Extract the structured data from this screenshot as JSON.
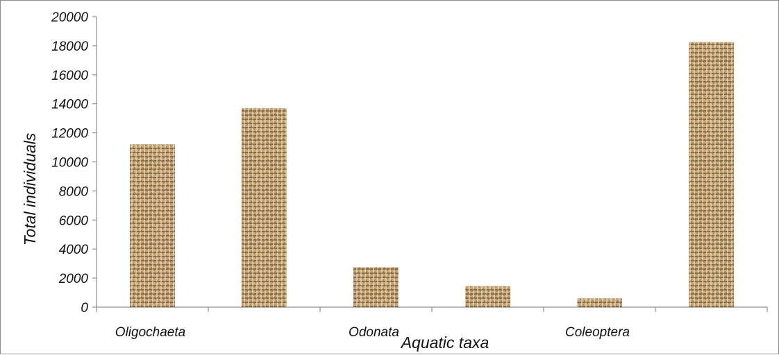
{
  "chart_data": {
    "type": "bar",
    "title": "",
    "xlabel": "Aquatic taxa",
    "ylabel": "Total individuals",
    "ylim": [
      0,
      20000
    ],
    "yticks": [
      "0",
      "2000",
      "4000",
      "6000",
      "8000",
      "10000",
      "12000",
      "14000",
      "16000",
      "18000",
      "20000"
    ],
    "categories": [
      "Oligochaeta",
      "",
      "Odonata",
      "",
      "Coleoptera",
      ""
    ],
    "values": [
      11200,
      13700,
      2750,
      1450,
      600,
      18250
    ],
    "grid": false,
    "legend": "none",
    "bar_colors": {
      "base": "#c9a978",
      "dark": "#6f5634",
      "light": "#efe2c0"
    },
    "axis_color": "#8c8c8c"
  }
}
